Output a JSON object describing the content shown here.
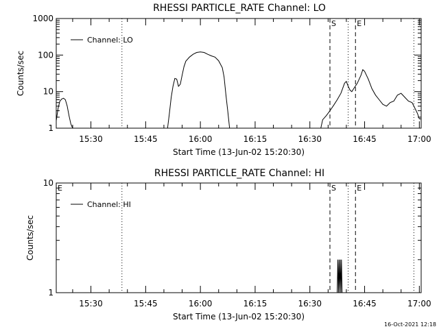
{
  "chart_data": [
    {
      "type": "line",
      "title": "RHESSI PARTICLE_RATE Channel: LO",
      "xlabel": "Start Time (13-Jun-02 15:20:30)",
      "ylabel": "Counts/sec",
      "yscale": "log",
      "ylim": [
        1,
        1000
      ],
      "xlim": [
        "15:20:30",
        "17:00:30"
      ],
      "yticks": [
        "1",
        "10",
        "100",
        "1000"
      ],
      "xticks": [
        "15:30",
        "15:45",
        "16:00",
        "16:15",
        "16:30",
        "16:45",
        "17:00"
      ],
      "legend": {
        "placement": "top-left",
        "entries": [
          "Channel: LO"
        ]
      },
      "series": [
        {
          "name": "Channel: LO",
          "segments": [
            [
              [
                "15:20:30",
                1.6
              ],
              [
                "15:21:00",
                3.5
              ],
              [
                "15:21:30",
                5.5
              ],
              [
                "15:22:00",
                6.3
              ],
              [
                "15:22:30",
                6.6
              ],
              [
                "15:23:00",
                6.0
              ],
              [
                "15:23:30",
                4.0
              ],
              [
                "15:24:00",
                2.2
              ],
              [
                "15:24:30",
                1.3
              ],
              [
                "15:25:00",
                1.0
              ]
            ],
            [
              [
                "15:51:00",
                1.0
              ],
              [
                "15:51:30",
                2.5
              ],
              [
                "15:52:00",
                7.0
              ],
              [
                "15:52:30",
                14
              ],
              [
                "15:53:00",
                23
              ],
              [
                "15:53:30",
                22
              ],
              [
                "15:54:00",
                14
              ],
              [
                "15:54:30",
                16
              ],
              [
                "15:55:00",
                28
              ],
              [
                "15:55:30",
                48
              ],
              [
                "15:56:00",
                68
              ],
              [
                "15:57:00",
                88
              ],
              [
                "15:58:00",
                105
              ],
              [
                "15:59:00",
                118
              ],
              [
                "16:00:00",
                122
              ],
              [
                "16:01:00",
                118
              ],
              [
                "16:02:00",
                105
              ],
              [
                "16:03:00",
                95
              ],
              [
                "16:04:00",
                88
              ],
              [
                "16:05:00",
                70
              ],
              [
                "16:06:00",
                45
              ],
              [
                "16:06:30",
                25
              ],
              [
                "16:07:00",
                8
              ],
              [
                "16:07:30",
                3
              ],
              [
                "16:08:00",
                1.0
              ]
            ],
            [
              [
                "16:33:00",
                1.0
              ],
              [
                "16:33:30",
                1.7
              ],
              [
                "16:34:30",
                2.2
              ],
              [
                "16:35:30",
                3.0
              ],
              [
                "16:36:30",
                4.2
              ],
              [
                "16:37:30",
                6.0
              ],
              [
                "16:38:30",
                9.0
              ],
              [
                "16:39:30",
                17
              ],
              [
                "16:40:00",
                19
              ],
              [
                "16:40:30",
                14
              ],
              [
                "16:41:00",
                11
              ],
              [
                "16:41:30",
                10
              ],
              [
                "16:42:00",
                12
              ],
              [
                "16:43:00",
                17
              ],
              [
                "16:44:00",
                28
              ],
              [
                "16:44:30",
                40
              ],
              [
                "16:45:00",
                36
              ],
              [
                "16:46:00",
                22
              ],
              [
                "16:47:00",
                12
              ],
              [
                "16:48:00",
                8
              ],
              [
                "16:49:00",
                6
              ],
              [
                "16:50:00",
                4.5
              ],
              [
                "16:51:00",
                4.0
              ],
              [
                "16:52:00",
                5.0
              ],
              [
                "16:53:00",
                5.5
              ],
              [
                "16:54:00",
                8
              ],
              [
                "16:55:00",
                9
              ],
              [
                "16:56:00",
                7
              ],
              [
                "16:57:00",
                5.5
              ],
              [
                "16:58:00",
                5.0
              ],
              [
                "16:58:30",
                4
              ],
              [
                "16:59:00",
                3.2
              ],
              [
                "16:59:30",
                2.5
              ],
              [
                "17:00:00",
                1.8
              ],
              [
                "17:00:30",
                1.8
              ]
            ]
          ]
        }
      ],
      "vlines": [
        {
          "x": "15:38:30",
          "style": "dotted",
          "label": ""
        },
        {
          "x": "16:35:30",
          "style": "dashed",
          "label": "S"
        },
        {
          "x": "16:40:30",
          "style": "dotted",
          "label": ""
        },
        {
          "x": "16:42:30",
          "style": "dashed",
          "label": "E"
        },
        {
          "x": "16:58:30",
          "style": "dotted",
          "label": ""
        }
      ]
    },
    {
      "type": "line",
      "title": "RHESSI PARTICLE_RATE Channel: HI",
      "xlabel": "Start Time (13-Jun-02 15:20:30)",
      "ylabel": "Counts/sec",
      "yscale": "log",
      "ylim": [
        1,
        10
      ],
      "xlim": [
        "15:20:30",
        "17:00:30"
      ],
      "yticks": [
        "1",
        "10"
      ],
      "xticks": [
        "15:30",
        "15:45",
        "16:00",
        "16:15",
        "16:30",
        "16:45",
        "17:00"
      ],
      "legend": {
        "placement": "top-left",
        "entries": [
          "Channel: HI"
        ]
      },
      "series": [
        {
          "name": "Channel: HI",
          "segments": [
            [
              [
                "16:37:30",
                1.0
              ],
              [
                "16:37:40",
                2.0
              ],
              [
                "16:37:50",
                1.0
              ],
              [
                "16:38:00",
                2.0
              ],
              [
                "16:38:10",
                1.0
              ],
              [
                "16:38:20",
                2.0
              ],
              [
                "16:38:30",
                1.0
              ],
              [
                "16:38:40",
                2.0
              ],
              [
                "16:38:50",
                1.0
              ]
            ]
          ]
        }
      ],
      "vlines": [
        {
          "x": "15:20:30",
          "style": "solid",
          "label": "E"
        },
        {
          "x": "15:38:30",
          "style": "dotted",
          "label": ""
        },
        {
          "x": "16:35:30",
          "style": "dashed",
          "label": "S"
        },
        {
          "x": "16:40:30",
          "style": "dotted",
          "label": ""
        },
        {
          "x": "16:42:30",
          "style": "dashed",
          "label": "E"
        },
        {
          "x": "16:58:30",
          "style": "dotted",
          "label": ""
        }
      ]
    }
  ],
  "footer": {
    "timestamp": "16-Oct-2021 12:18"
  }
}
